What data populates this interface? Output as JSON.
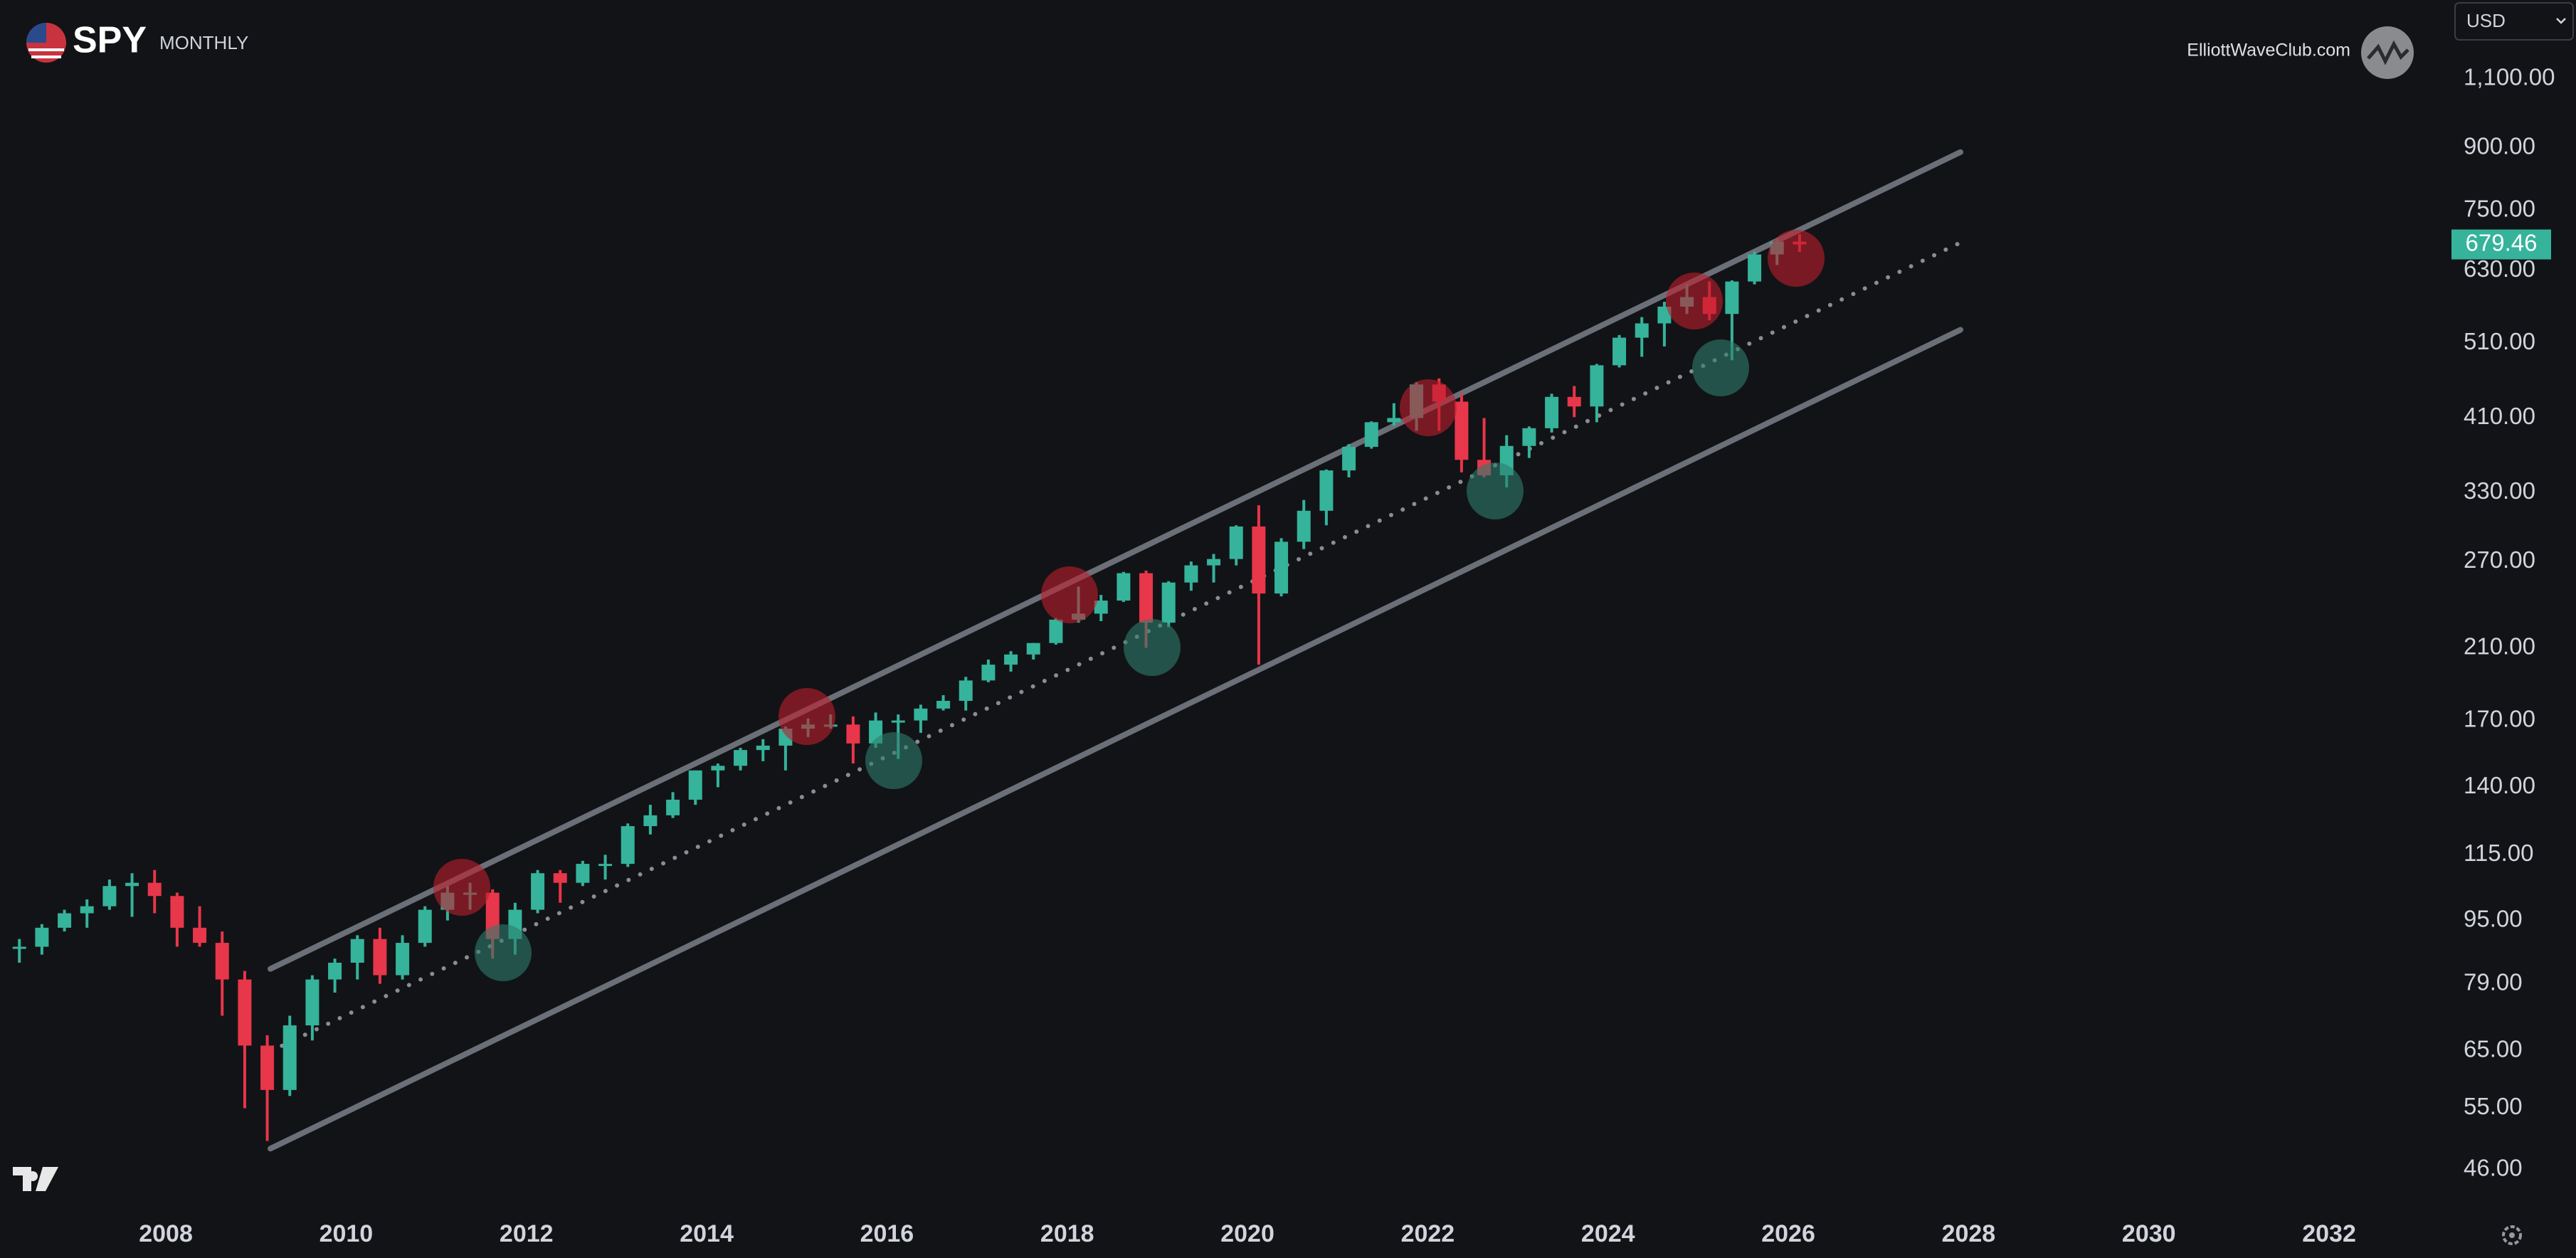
{
  "chart_data": {
    "type": "candlestick",
    "title": "SPY",
    "subtitle": "MONTHLY",
    "watermark": "ElliottWaveClub.com",
    "currency": "USD",
    "log_scale": true,
    "grid": false,
    "up_color": "#35b39b",
    "down_color": "#e8364a",
    "x": [
      2006.25,
      2006.5,
      2006.75,
      2007,
      2007.25,
      2007.5,
      2007.75,
      2008,
      2008.25,
      2008.5,
      2008.75,
      2009,
      2009.25,
      2009.5,
      2009.75,
      2010,
      2010.25,
      2010.5,
      2010.75,
      2011,
      2011.25,
      2011.5,
      2011.75,
      2012,
      2012.25,
      2012.5,
      2012.75,
      2013,
      2013.25,
      2013.5,
      2013.75,
      2014,
      2014.25,
      2014.5,
      2014.75,
      2015,
      2015.25,
      2015.5,
      2015.75,
      2016,
      2016.25,
      2016.5,
      2016.75,
      2017,
      2017.25,
      2017.5,
      2017.75,
      2018,
      2018.25,
      2018.5,
      2018.75,
      2019,
      2019.25,
      2019.5,
      2019.75,
      2020,
      2020.25,
      2020.5,
      2020.75,
      2021,
      2021.25,
      2021.5,
      2021.75,
      2022,
      2022.25,
      2022.5,
      2022.75,
      2023,
      2023.25,
      2023.5,
      2023.75,
      2024,
      2024.25,
      2024.5,
      2024.75,
      2025,
      2025.25,
      2025.5,
      2025.75,
      2026
    ],
    "open": [
      88,
      88,
      93,
      97,
      99,
      105,
      106,
      102,
      93,
      89,
      80,
      66,
      58,
      70,
      80,
      84,
      90,
      81,
      89,
      98,
      103,
      103,
      90,
      98,
      109,
      106,
      112,
      112,
      125,
      129,
      135,
      147,
      149,
      156,
      158,
      166,
      168,
      168,
      159,
      170,
      170,
      176,
      180,
      191,
      200,
      206,
      213,
      228,
      232,
      241,
      261,
      226,
      254,
      267,
      272,
      299,
      246,
      286,
      313,
      352,
      377,
      405,
      410,
      452,
      430,
      363,
      347,
      378,
      398,
      436,
      424,
      478,
      518,
      540,
      567,
      583,
      555,
      610,
      660,
      685
    ],
    "high": [
      90,
      94,
      98,
      101,
      107,
      109,
      110,
      103,
      99,
      92,
      82,
      68,
      72,
      81,
      85,
      91,
      93,
      91,
      99,
      105,
      106,
      104,
      100,
      110,
      110,
      113,
      115,
      126,
      133,
      138,
      147,
      150,
      157,
      161,
      167,
      171,
      173,
      172,
      174,
      173,
      178,
      183,
      193,
      203,
      208,
      213,
      229,
      251,
      245,
      262,
      263,
      255,
      270,
      276,
      300,
      318,
      289,
      323,
      353,
      380,
      406,
      428,
      455,
      460,
      440,
      410,
      390,
      400,
      440,
      450,
      480,
      522,
      550,
      575,
      605,
      610,
      612,
      665,
      692,
      700
    ],
    "low": [
      84,
      86,
      92,
      93,
      98,
      96,
      97,
      88,
      88,
      72,
      55,
      50,
      57,
      67,
      77,
      80,
      79,
      80,
      88,
      95,
      98,
      85,
      86,
      97,
      100,
      105,
      107,
      111,
      122,
      128,
      133,
      140,
      147,
      151,
      147,
      162,
      166,
      150,
      157,
      152,
      164,
      175,
      175,
      190,
      196,
      203,
      212,
      226,
      227,
      240,
      210,
      223,
      248,
      254,
      267,
      200,
      244,
      280,
      300,
      345,
      375,
      401,
      395,
      395,
      350,
      345,
      335,
      365,
      393,
      411,
      405,
      475,
      490,
      505,
      555,
      545,
      485,
      605,
      640,
      665
    ],
    "close": [
      88,
      93,
      97,
      99,
      105,
      106,
      102,
      93,
      89,
      80,
      66,
      58,
      70,
      80,
      84,
      90,
      81,
      89,
      98,
      103,
      103,
      90,
      98,
      109,
      106,
      112,
      112,
      125,
      129,
      135,
      147,
      149,
      156,
      158,
      166,
      168,
      168,
      159,
      170,
      170,
      176,
      180,
      191,
      200,
      206,
      213,
      228,
      232,
      241,
      261,
      226,
      254,
      267,
      272,
      299,
      246,
      286,
      313,
      352,
      377,
      405,
      410,
      452,
      430,
      363,
      347,
      378,
      398,
      436,
      424,
      478,
      518,
      540,
      567,
      583,
      555,
      610,
      660,
      685,
      679.46
    ],
    "lines": [
      {
        "x": [
          2009.16,
          2027.91
        ],
        "values": [
          82.5,
          889
        ],
        "style": "solid",
        "color": "#6b6f78"
      },
      {
        "x": [
          2009.16,
          2027.91
        ],
        "values": [
          48.9,
          530
        ],
        "style": "solid",
        "color": "#6b6f78"
      },
      {
        "x": [
          2009.16,
          2027.91
        ],
        "values": [
          64.9,
          683
        ],
        "style": "dotted",
        "color": "#8a8d94"
      }
    ],
    "xlim": [
      2006.16,
      2033.16
    ],
    "xticks": [
      2008,
      2010,
      2012,
      2014,
      2016,
      2018,
      2020,
      2022,
      2024,
      2026,
      2028,
      2030,
      2032
    ],
    "ylim": [
      41.2,
      1384
    ],
    "yticks": [
      {
        "value": 46,
        "label": "46.00"
      },
      {
        "value": 55,
        "label": "55.00"
      },
      {
        "value": 65,
        "label": "65.00"
      },
      {
        "value": 79,
        "label": "79.00"
      },
      {
        "value": 95,
        "label": "95.00"
      },
      {
        "value": 115,
        "label": "115.00"
      },
      {
        "value": 140,
        "label": "140.00"
      },
      {
        "value": 170,
        "label": "170.00"
      },
      {
        "value": 210,
        "label": "210.00"
      },
      {
        "value": 270,
        "label": "270.00"
      },
      {
        "value": 330,
        "label": "330.00"
      },
      {
        "value": 410,
        "label": "410.00"
      },
      {
        "value": 510,
        "label": "510.00"
      },
      {
        "value": 630,
        "label": "630.00"
      },
      {
        "value": 750,
        "label": "750.00"
      },
      {
        "value": 900,
        "label": "900.00"
      },
      {
        "value": 1100,
        "label": "1,100.00"
      }
    ]
  }
}
